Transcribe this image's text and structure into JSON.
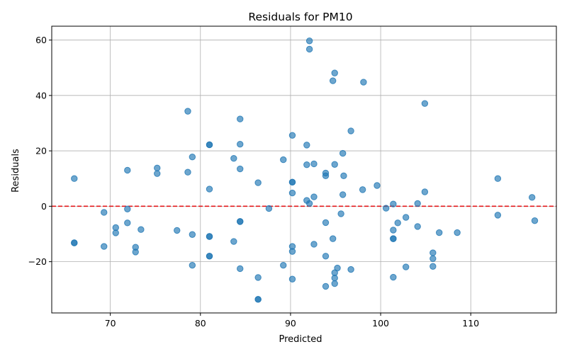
{
  "chart_data": {
    "type": "scatter",
    "title": "Residuals for PM10",
    "xlabel": "Predicted",
    "ylabel": "Residuals",
    "xlim": [
      63.5,
      119.5
    ],
    "ylim": [
      -38.5,
      65
    ],
    "xticks": [
      70,
      80,
      90,
      100,
      110
    ],
    "yticks": [
      -20,
      0,
      20,
      40,
      60
    ],
    "grid": true,
    "point_color": "#1f77b4",
    "reference_line": {
      "y": 0,
      "color": "#e31a1c",
      "style": "dashed"
    },
    "points": [
      [
        66.0,
        10.0
      ],
      [
        66.0,
        -13.2
      ],
      [
        66.0,
        -13.2
      ],
      [
        69.3,
        -2.2
      ],
      [
        69.3,
        -14.5
      ],
      [
        70.6,
        -7.7
      ],
      [
        70.6,
        -9.6
      ],
      [
        71.9,
        -1.0
      ],
      [
        71.9,
        13.0
      ],
      [
        71.9,
        -6.0
      ],
      [
        72.8,
        -14.8
      ],
      [
        72.8,
        -16.5
      ],
      [
        73.4,
        -8.4
      ],
      [
        75.2,
        13.8
      ],
      [
        75.2,
        11.8
      ],
      [
        77.4,
        -8.7
      ],
      [
        78.6,
        34.3
      ],
      [
        78.6,
        12.3
      ],
      [
        79.1,
        17.8
      ],
      [
        79.1,
        -10.2
      ],
      [
        79.1,
        -21.3
      ],
      [
        81.0,
        22.2
      ],
      [
        81.0,
        22.2
      ],
      [
        81.0,
        6.2
      ],
      [
        81.0,
        -10.9
      ],
      [
        81.0,
        -10.9
      ],
      [
        81.0,
        -18.0
      ],
      [
        81.0,
        -18.0
      ],
      [
        83.7,
        17.3
      ],
      [
        83.7,
        -12.7
      ],
      [
        84.4,
        31.5
      ],
      [
        84.4,
        22.4
      ],
      [
        84.4,
        13.5
      ],
      [
        84.4,
        -5.5
      ],
      [
        84.4,
        -5.5
      ],
      [
        84.4,
        -22.5
      ],
      [
        86.4,
        8.5
      ],
      [
        86.4,
        -25.7
      ],
      [
        86.4,
        -33.6
      ],
      [
        86.4,
        -33.6
      ],
      [
        87.6,
        -0.8
      ],
      [
        89.2,
        16.8
      ],
      [
        89.2,
        -21.3
      ],
      [
        90.2,
        25.6
      ],
      [
        90.2,
        8.7
      ],
      [
        90.2,
        8.7
      ],
      [
        90.2,
        4.8
      ],
      [
        90.2,
        -14.5
      ],
      [
        90.2,
        -16.3
      ],
      [
        90.2,
        -26.3
      ],
      [
        91.8,
        22.1
      ],
      [
        91.8,
        15.0
      ],
      [
        91.8,
        2.1
      ],
      [
        92.1,
        59.7
      ],
      [
        92.1,
        56.7
      ],
      [
        92.1,
        1.0
      ],
      [
        92.6,
        15.3
      ],
      [
        92.6,
        3.4
      ],
      [
        92.6,
        -13.7
      ],
      [
        93.9,
        12.0
      ],
      [
        93.9,
        11.0
      ],
      [
        93.9,
        -5.9
      ],
      [
        93.9,
        -18.0
      ],
      [
        93.9,
        -28.9
      ],
      [
        94.7,
        45.3
      ],
      [
        94.7,
        -11.7
      ],
      [
        94.9,
        48.1
      ],
      [
        94.9,
        15.1
      ],
      [
        94.9,
        -24.0
      ],
      [
        94.9,
        -25.9
      ],
      [
        94.9,
        -27.9
      ],
      [
        95.2,
        -22.3
      ],
      [
        95.6,
        -2.7
      ],
      [
        95.8,
        19.1
      ],
      [
        95.8,
        4.2
      ],
      [
        95.9,
        11.0
      ],
      [
        96.7,
        27.2
      ],
      [
        96.7,
        -22.8
      ],
      [
        98.0,
        6.0
      ],
      [
        98.1,
        44.8
      ],
      [
        99.6,
        7.5
      ],
      [
        100.6,
        -0.7
      ],
      [
        101.4,
        0.8
      ],
      [
        101.4,
        -8.6
      ],
      [
        101.4,
        -11.7
      ],
      [
        101.4,
        -11.7
      ],
      [
        101.4,
        -25.6
      ],
      [
        101.9,
        -6.0
      ],
      [
        102.8,
        -4.0
      ],
      [
        102.8,
        -21.9
      ],
      [
        104.1,
        1.0
      ],
      [
        104.1,
        -7.3
      ],
      [
        104.9,
        37.1
      ],
      [
        104.9,
        5.2
      ],
      [
        105.8,
        -16.8
      ],
      [
        105.8,
        -18.9
      ],
      [
        105.8,
        -21.7
      ],
      [
        106.5,
        -9.5
      ],
      [
        108.5,
        -9.5
      ],
      [
        113.0,
        10.0
      ],
      [
        113.0,
        -3.2
      ],
      [
        116.8,
        3.2
      ],
      [
        117.1,
        -5.2
      ]
    ]
  }
}
